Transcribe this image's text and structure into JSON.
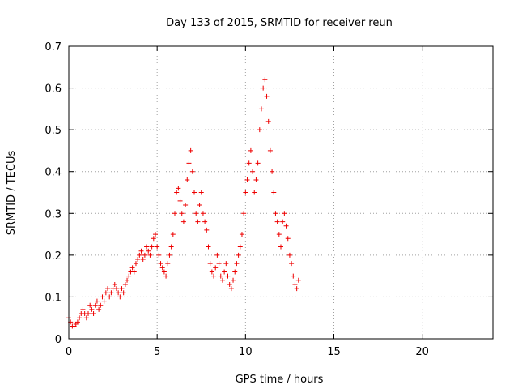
{
  "chart_data": {
    "type": "scatter",
    "title": "Day 133 of 2015, SRMTID for receiver reun",
    "xlabel": "GPS time / hours",
    "ylabel": "SRMTID / TECUs",
    "xlim": [
      0,
      24
    ],
    "ylim": [
      0,
      0.7
    ],
    "xticks": [
      0,
      5,
      10,
      15,
      20
    ],
    "xtick_labels": [
      "0",
      "5",
      "10",
      "15",
      "20"
    ],
    "yticks": [
      0,
      0.1,
      0.2,
      0.3,
      0.4,
      0.5,
      0.6,
      0.7
    ],
    "ytick_labels": [
      "0",
      "0.1",
      "0.2",
      "0.3",
      "0.4",
      "0.5",
      "0.6",
      "0.7"
    ],
    "grid": true,
    "marker": "+",
    "color": "#ee0000",
    "series": [
      {
        "name": "SRMTID",
        "x": [
          0.0,
          0.1,
          0.2,
          0.3,
          0.4,
          0.5,
          0.6,
          0.7,
          0.8,
          0.9,
          1.0,
          1.1,
          1.2,
          1.3,
          1.4,
          1.5,
          1.6,
          1.7,
          1.8,
          1.9,
          2.0,
          2.1,
          2.2,
          2.3,
          2.4,
          2.5,
          2.6,
          2.7,
          2.8,
          2.9,
          3.0,
          3.1,
          3.2,
          3.3,
          3.4,
          3.5,
          3.6,
          3.7,
          3.8,
          3.9,
          4.0,
          4.1,
          4.2,
          4.3,
          4.4,
          4.5,
          4.6,
          4.7,
          4.8,
          4.9,
          5.0,
          5.1,
          5.2,
          5.3,
          5.4,
          5.5,
          5.6,
          5.7,
          5.8,
          5.9,
          6.0,
          6.1,
          6.2,
          6.3,
          6.4,
          6.5,
          6.6,
          6.7,
          6.8,
          6.9,
          7.0,
          7.1,
          7.2,
          7.3,
          7.4,
          7.5,
          7.6,
          7.7,
          7.8,
          7.9,
          8.0,
          8.1,
          8.2,
          8.3,
          8.4,
          8.5,
          8.6,
          8.7,
          8.8,
          8.9,
          9.0,
          9.1,
          9.2,
          9.3,
          9.4,
          9.5,
          9.6,
          9.7,
          9.8,
          9.9,
          10.0,
          10.1,
          10.2,
          10.3,
          10.4,
          10.5,
          10.6,
          10.7,
          10.8,
          10.9,
          11.0,
          11.1,
          11.2,
          11.3,
          11.4,
          11.5,
          11.6,
          11.7,
          11.8,
          11.9,
          12.0,
          12.1,
          12.2,
          12.3,
          12.4,
          12.5,
          12.6,
          12.7,
          12.8,
          12.9,
          13.0
        ],
        "y": [
          0.05,
          0.04,
          0.03,
          0.03,
          0.035,
          0.04,
          0.05,
          0.06,
          0.07,
          0.06,
          0.05,
          0.06,
          0.08,
          0.07,
          0.06,
          0.08,
          0.09,
          0.07,
          0.08,
          0.1,
          0.09,
          0.11,
          0.12,
          0.1,
          0.11,
          0.12,
          0.13,
          0.12,
          0.11,
          0.1,
          0.12,
          0.11,
          0.13,
          0.14,
          0.15,
          0.16,
          0.17,
          0.16,
          0.18,
          0.19,
          0.2,
          0.21,
          0.19,
          0.2,
          0.22,
          0.21,
          0.2,
          0.22,
          0.24,
          0.25,
          0.22,
          0.2,
          0.18,
          0.17,
          0.16,
          0.15,
          0.18,
          0.2,
          0.22,
          0.25,
          0.3,
          0.35,
          0.36,
          0.33,
          0.3,
          0.28,
          0.32,
          0.38,
          0.42,
          0.45,
          0.4,
          0.35,
          0.3,
          0.28,
          0.32,
          0.35,
          0.3,
          0.28,
          0.26,
          0.22,
          0.18,
          0.16,
          0.15,
          0.17,
          0.2,
          0.18,
          0.15,
          0.14,
          0.16,
          0.18,
          0.15,
          0.13,
          0.12,
          0.14,
          0.16,
          0.18,
          0.2,
          0.22,
          0.25,
          0.3,
          0.35,
          0.38,
          0.42,
          0.45,
          0.4,
          0.35,
          0.38,
          0.42,
          0.5,
          0.55,
          0.6,
          0.62,
          0.58,
          0.52,
          0.45,
          0.4,
          0.35,
          0.3,
          0.28,
          0.25,
          0.22,
          0.28,
          0.3,
          0.27,
          0.24,
          0.2,
          0.18,
          0.15,
          0.13,
          0.12,
          0.14
        ]
      }
    ]
  }
}
